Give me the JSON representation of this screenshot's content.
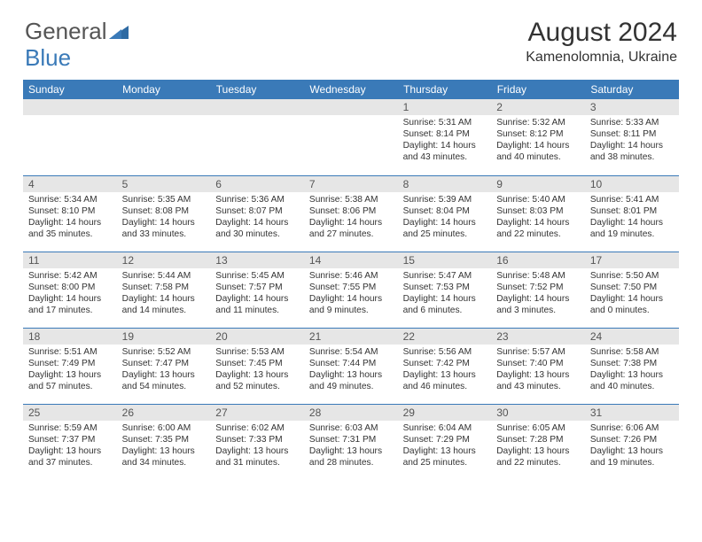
{
  "logo": {
    "word1": "General",
    "word2": "Blue"
  },
  "title": "August 2024",
  "subtitle": "Kamenolomnia, Ukraine",
  "colors": {
    "header_bg": "#3a7ab8",
    "header_text": "#ffffff",
    "daynum_bg": "#e6e6e6",
    "text": "#333333",
    "rule": "#3a7ab8",
    "page_bg": "#ffffff"
  },
  "day_headers": [
    "Sunday",
    "Monday",
    "Tuesday",
    "Wednesday",
    "Thursday",
    "Friday",
    "Saturday"
  ],
  "weeks": [
    [
      {
        "n": "",
        "lines": []
      },
      {
        "n": "",
        "lines": []
      },
      {
        "n": "",
        "lines": []
      },
      {
        "n": "",
        "lines": []
      },
      {
        "n": "1",
        "lines": [
          "Sunrise: 5:31 AM",
          "Sunset: 8:14 PM",
          "Daylight: 14 hours and 43 minutes."
        ]
      },
      {
        "n": "2",
        "lines": [
          "Sunrise: 5:32 AM",
          "Sunset: 8:12 PM",
          "Daylight: 14 hours and 40 minutes."
        ]
      },
      {
        "n": "3",
        "lines": [
          "Sunrise: 5:33 AM",
          "Sunset: 8:11 PM",
          "Daylight: 14 hours and 38 minutes."
        ]
      }
    ],
    [
      {
        "n": "4",
        "lines": [
          "Sunrise: 5:34 AM",
          "Sunset: 8:10 PM",
          "Daylight: 14 hours and 35 minutes."
        ]
      },
      {
        "n": "5",
        "lines": [
          "Sunrise: 5:35 AM",
          "Sunset: 8:08 PM",
          "Daylight: 14 hours and 33 minutes."
        ]
      },
      {
        "n": "6",
        "lines": [
          "Sunrise: 5:36 AM",
          "Sunset: 8:07 PM",
          "Daylight: 14 hours and 30 minutes."
        ]
      },
      {
        "n": "7",
        "lines": [
          "Sunrise: 5:38 AM",
          "Sunset: 8:06 PM",
          "Daylight: 14 hours and 27 minutes."
        ]
      },
      {
        "n": "8",
        "lines": [
          "Sunrise: 5:39 AM",
          "Sunset: 8:04 PM",
          "Daylight: 14 hours and 25 minutes."
        ]
      },
      {
        "n": "9",
        "lines": [
          "Sunrise: 5:40 AM",
          "Sunset: 8:03 PM",
          "Daylight: 14 hours and 22 minutes."
        ]
      },
      {
        "n": "10",
        "lines": [
          "Sunrise: 5:41 AM",
          "Sunset: 8:01 PM",
          "Daylight: 14 hours and 19 minutes."
        ]
      }
    ],
    [
      {
        "n": "11",
        "lines": [
          "Sunrise: 5:42 AM",
          "Sunset: 8:00 PM",
          "Daylight: 14 hours and 17 minutes."
        ]
      },
      {
        "n": "12",
        "lines": [
          "Sunrise: 5:44 AM",
          "Sunset: 7:58 PM",
          "Daylight: 14 hours and 14 minutes."
        ]
      },
      {
        "n": "13",
        "lines": [
          "Sunrise: 5:45 AM",
          "Sunset: 7:57 PM",
          "Daylight: 14 hours and 11 minutes."
        ]
      },
      {
        "n": "14",
        "lines": [
          "Sunrise: 5:46 AM",
          "Sunset: 7:55 PM",
          "Daylight: 14 hours and 9 minutes."
        ]
      },
      {
        "n": "15",
        "lines": [
          "Sunrise: 5:47 AM",
          "Sunset: 7:53 PM",
          "Daylight: 14 hours and 6 minutes."
        ]
      },
      {
        "n": "16",
        "lines": [
          "Sunrise: 5:48 AM",
          "Sunset: 7:52 PM",
          "Daylight: 14 hours and 3 minutes."
        ]
      },
      {
        "n": "17",
        "lines": [
          "Sunrise: 5:50 AM",
          "Sunset: 7:50 PM",
          "Daylight: 14 hours and 0 minutes."
        ]
      }
    ],
    [
      {
        "n": "18",
        "lines": [
          "Sunrise: 5:51 AM",
          "Sunset: 7:49 PM",
          "Daylight: 13 hours and 57 minutes."
        ]
      },
      {
        "n": "19",
        "lines": [
          "Sunrise: 5:52 AM",
          "Sunset: 7:47 PM",
          "Daylight: 13 hours and 54 minutes."
        ]
      },
      {
        "n": "20",
        "lines": [
          "Sunrise: 5:53 AM",
          "Sunset: 7:45 PM",
          "Daylight: 13 hours and 52 minutes."
        ]
      },
      {
        "n": "21",
        "lines": [
          "Sunrise: 5:54 AM",
          "Sunset: 7:44 PM",
          "Daylight: 13 hours and 49 minutes."
        ]
      },
      {
        "n": "22",
        "lines": [
          "Sunrise: 5:56 AM",
          "Sunset: 7:42 PM",
          "Daylight: 13 hours and 46 minutes."
        ]
      },
      {
        "n": "23",
        "lines": [
          "Sunrise: 5:57 AM",
          "Sunset: 7:40 PM",
          "Daylight: 13 hours and 43 minutes."
        ]
      },
      {
        "n": "24",
        "lines": [
          "Sunrise: 5:58 AM",
          "Sunset: 7:38 PM",
          "Daylight: 13 hours and 40 minutes."
        ]
      }
    ],
    [
      {
        "n": "25",
        "lines": [
          "Sunrise: 5:59 AM",
          "Sunset: 7:37 PM",
          "Daylight: 13 hours and 37 minutes."
        ]
      },
      {
        "n": "26",
        "lines": [
          "Sunrise: 6:00 AM",
          "Sunset: 7:35 PM",
          "Daylight: 13 hours and 34 minutes."
        ]
      },
      {
        "n": "27",
        "lines": [
          "Sunrise: 6:02 AM",
          "Sunset: 7:33 PM",
          "Daylight: 13 hours and 31 minutes."
        ]
      },
      {
        "n": "28",
        "lines": [
          "Sunrise: 6:03 AM",
          "Sunset: 7:31 PM",
          "Daylight: 13 hours and 28 minutes."
        ]
      },
      {
        "n": "29",
        "lines": [
          "Sunrise: 6:04 AM",
          "Sunset: 7:29 PM",
          "Daylight: 13 hours and 25 minutes."
        ]
      },
      {
        "n": "30",
        "lines": [
          "Sunrise: 6:05 AM",
          "Sunset: 7:28 PM",
          "Daylight: 13 hours and 22 minutes."
        ]
      },
      {
        "n": "31",
        "lines": [
          "Sunrise: 6:06 AM",
          "Sunset: 7:26 PM",
          "Daylight: 13 hours and 19 minutes."
        ]
      }
    ]
  ]
}
